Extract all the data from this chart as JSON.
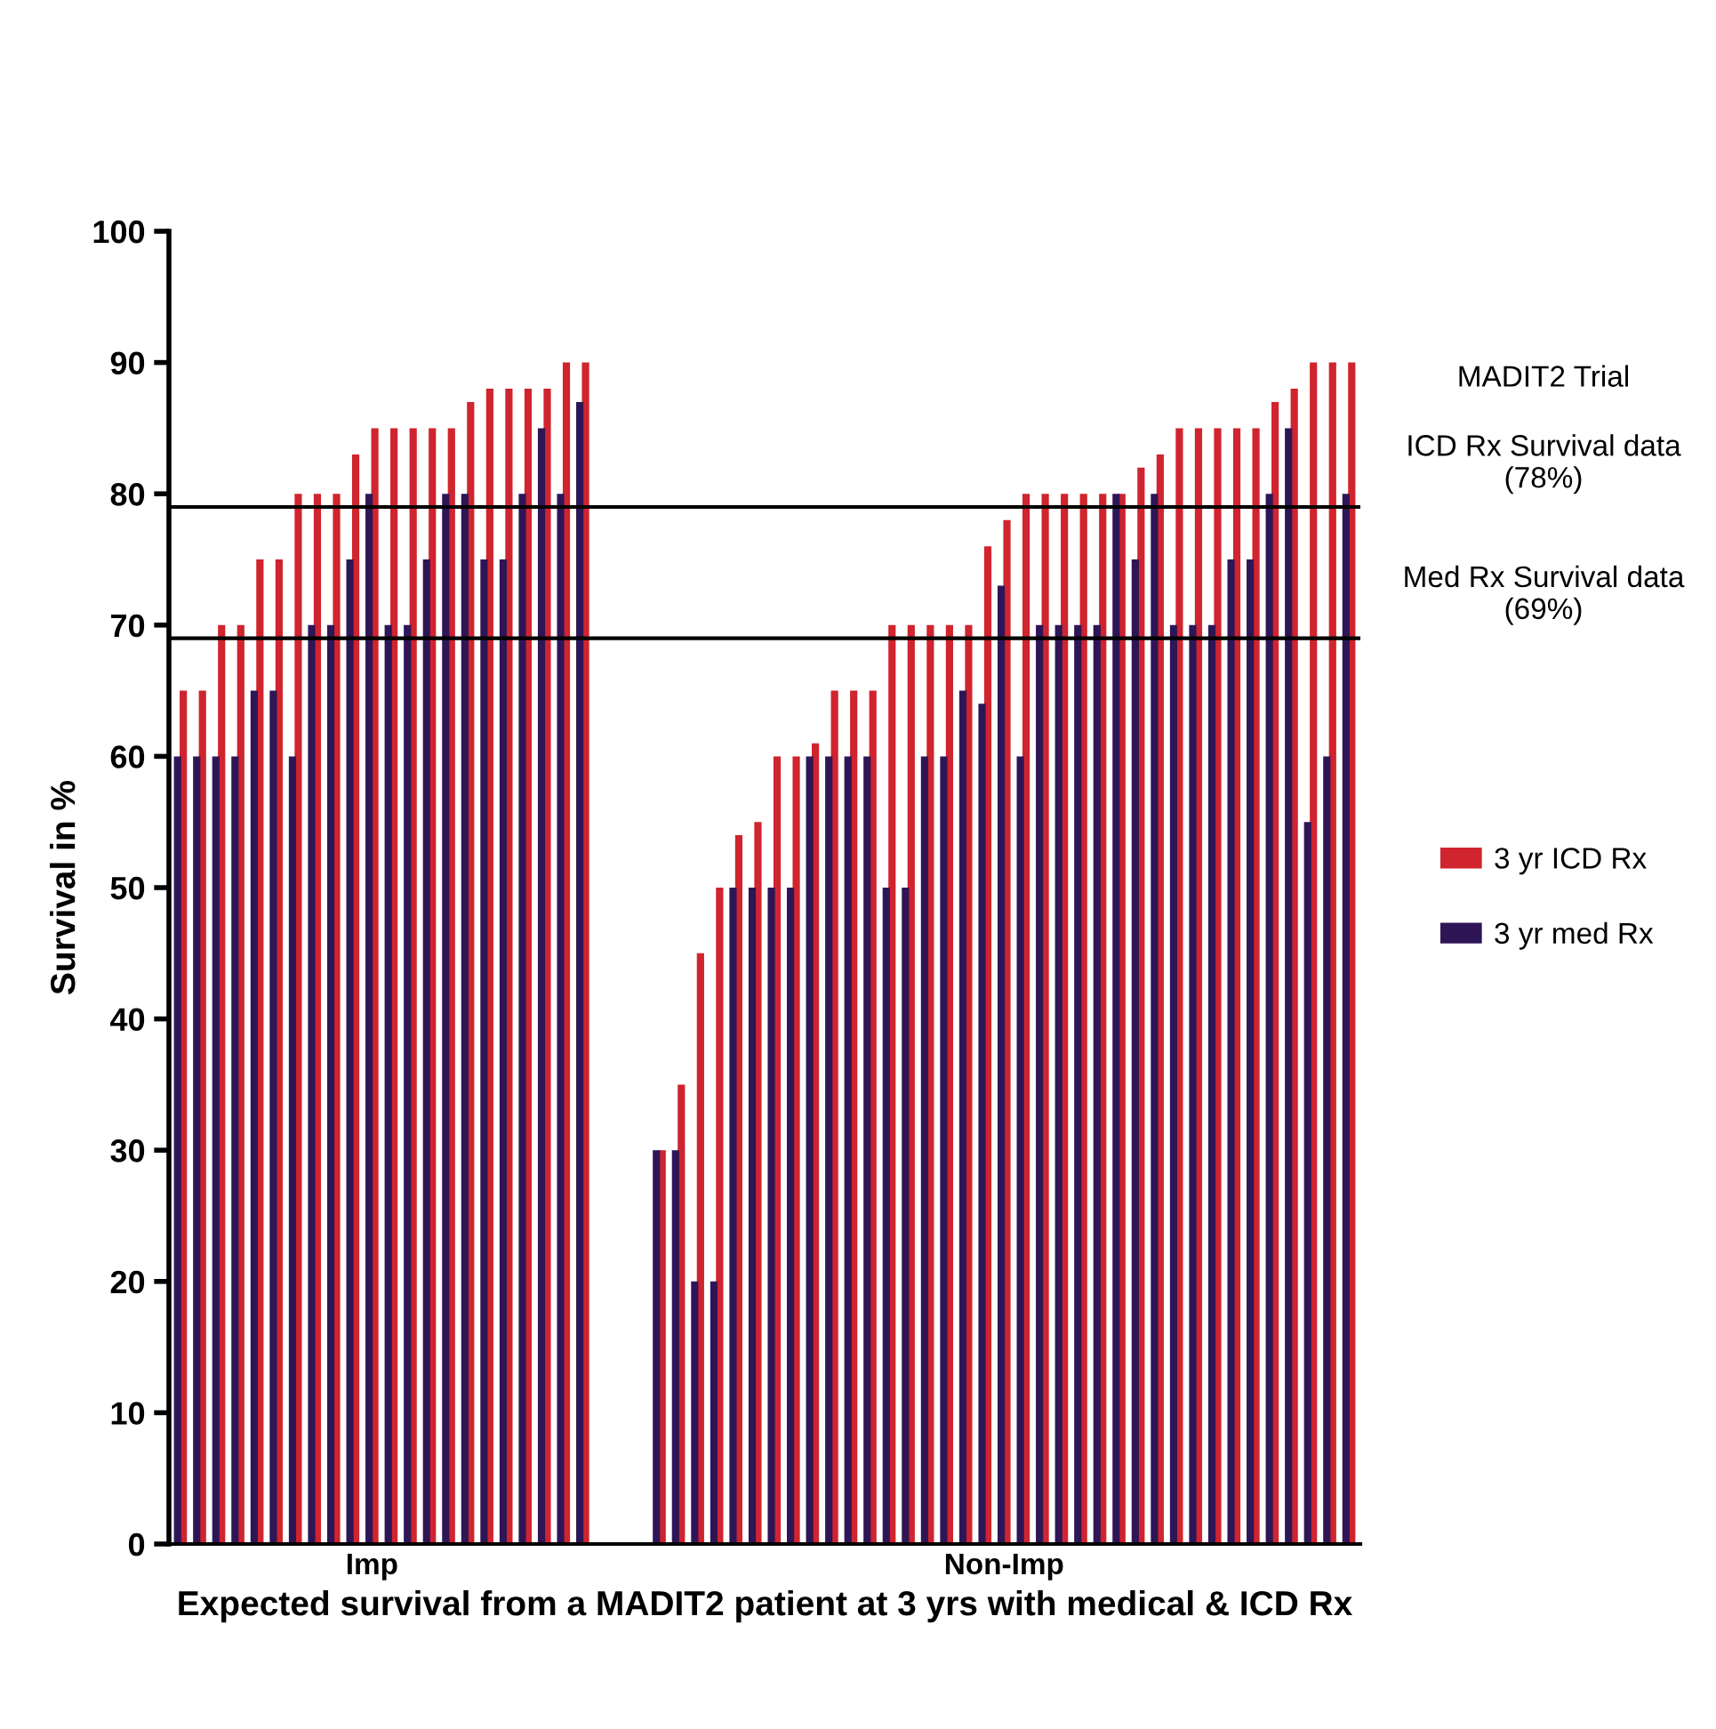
{
  "chart_data": {
    "type": "bar",
    "xlabel": "Expected survival from a MADIT2 patient at 3 yrs with medical & ICD Rx",
    "ylabel": "Survival in %",
    "categories": [
      null,
      null,
      null,
      null,
      null,
      null,
      null,
      null,
      null,
      null,
      "Imp",
      null,
      null,
      null,
      null,
      null,
      null,
      null,
      null,
      null,
      null,
      null,
      null,
      null,
      null,
      null,
      null,
      null,
      null,
      null,
      null,
      null,
      null,
      null,
      null,
      null,
      null,
      null,
      null,
      null,
      null,
      null,
      null,
      "Non-Imp",
      null,
      null,
      null,
      null,
      null,
      null,
      null,
      null,
      null,
      null,
      null,
      null,
      null,
      null,
      null,
      null,
      null,
      null
    ],
    "series": [
      {
        "name": "3 yr ICD Rx",
        "color": "#d0242e",
        "values": [
          65,
          65,
          70,
          70,
          75,
          75,
          80,
          80,
          80,
          83,
          85,
          85,
          85,
          85,
          85,
          87,
          88,
          88,
          88,
          88,
          90,
          90,
          null,
          null,
          null,
          30,
          35,
          45,
          50,
          54,
          55,
          60,
          60,
          61,
          65,
          65,
          65,
          70,
          70,
          70,
          70,
          70,
          76,
          78,
          80,
          80,
          80,
          80,
          80,
          80,
          82,
          83,
          85,
          85,
          85,
          85,
          85,
          87,
          88,
          90,
          90,
          90
        ]
      },
      {
        "name": "3 yr med Rx",
        "color": "#2e1656",
        "values": [
          60,
          60,
          60,
          60,
          65,
          65,
          60,
          70,
          70,
          75,
          80,
          70,
          70,
          75,
          80,
          80,
          75,
          75,
          80,
          85,
          80,
          87,
          null,
          null,
          null,
          30,
          30,
          20,
          20,
          50,
          50,
          50,
          50,
          60,
          60,
          60,
          60,
          50,
          50,
          60,
          60,
          65,
          64,
          73,
          60,
          70,
          70,
          70,
          70,
          80,
          75,
          80,
          70,
          70,
          70,
          75,
          75,
          80,
          85,
          55,
          60,
          80
        ]
      }
    ],
    "ylim": [
      0,
      100
    ],
    "yticks": [
      0,
      10,
      20,
      30,
      40,
      50,
      60,
      70,
      80,
      90,
      100
    ],
    "ref_lines": [
      {
        "axis": "y",
        "value": 79,
        "label": "ICD Rx Survival data\n(78%)",
        "color": "#000000"
      },
      {
        "axis": "y",
        "value": 69,
        "label": "Med Rx Survival data\n(69%)",
        "color": "#000000"
      }
    ],
    "annotations": [
      "MADIT2 Trial"
    ],
    "legend": "right",
    "tick_labels": "y"
  }
}
